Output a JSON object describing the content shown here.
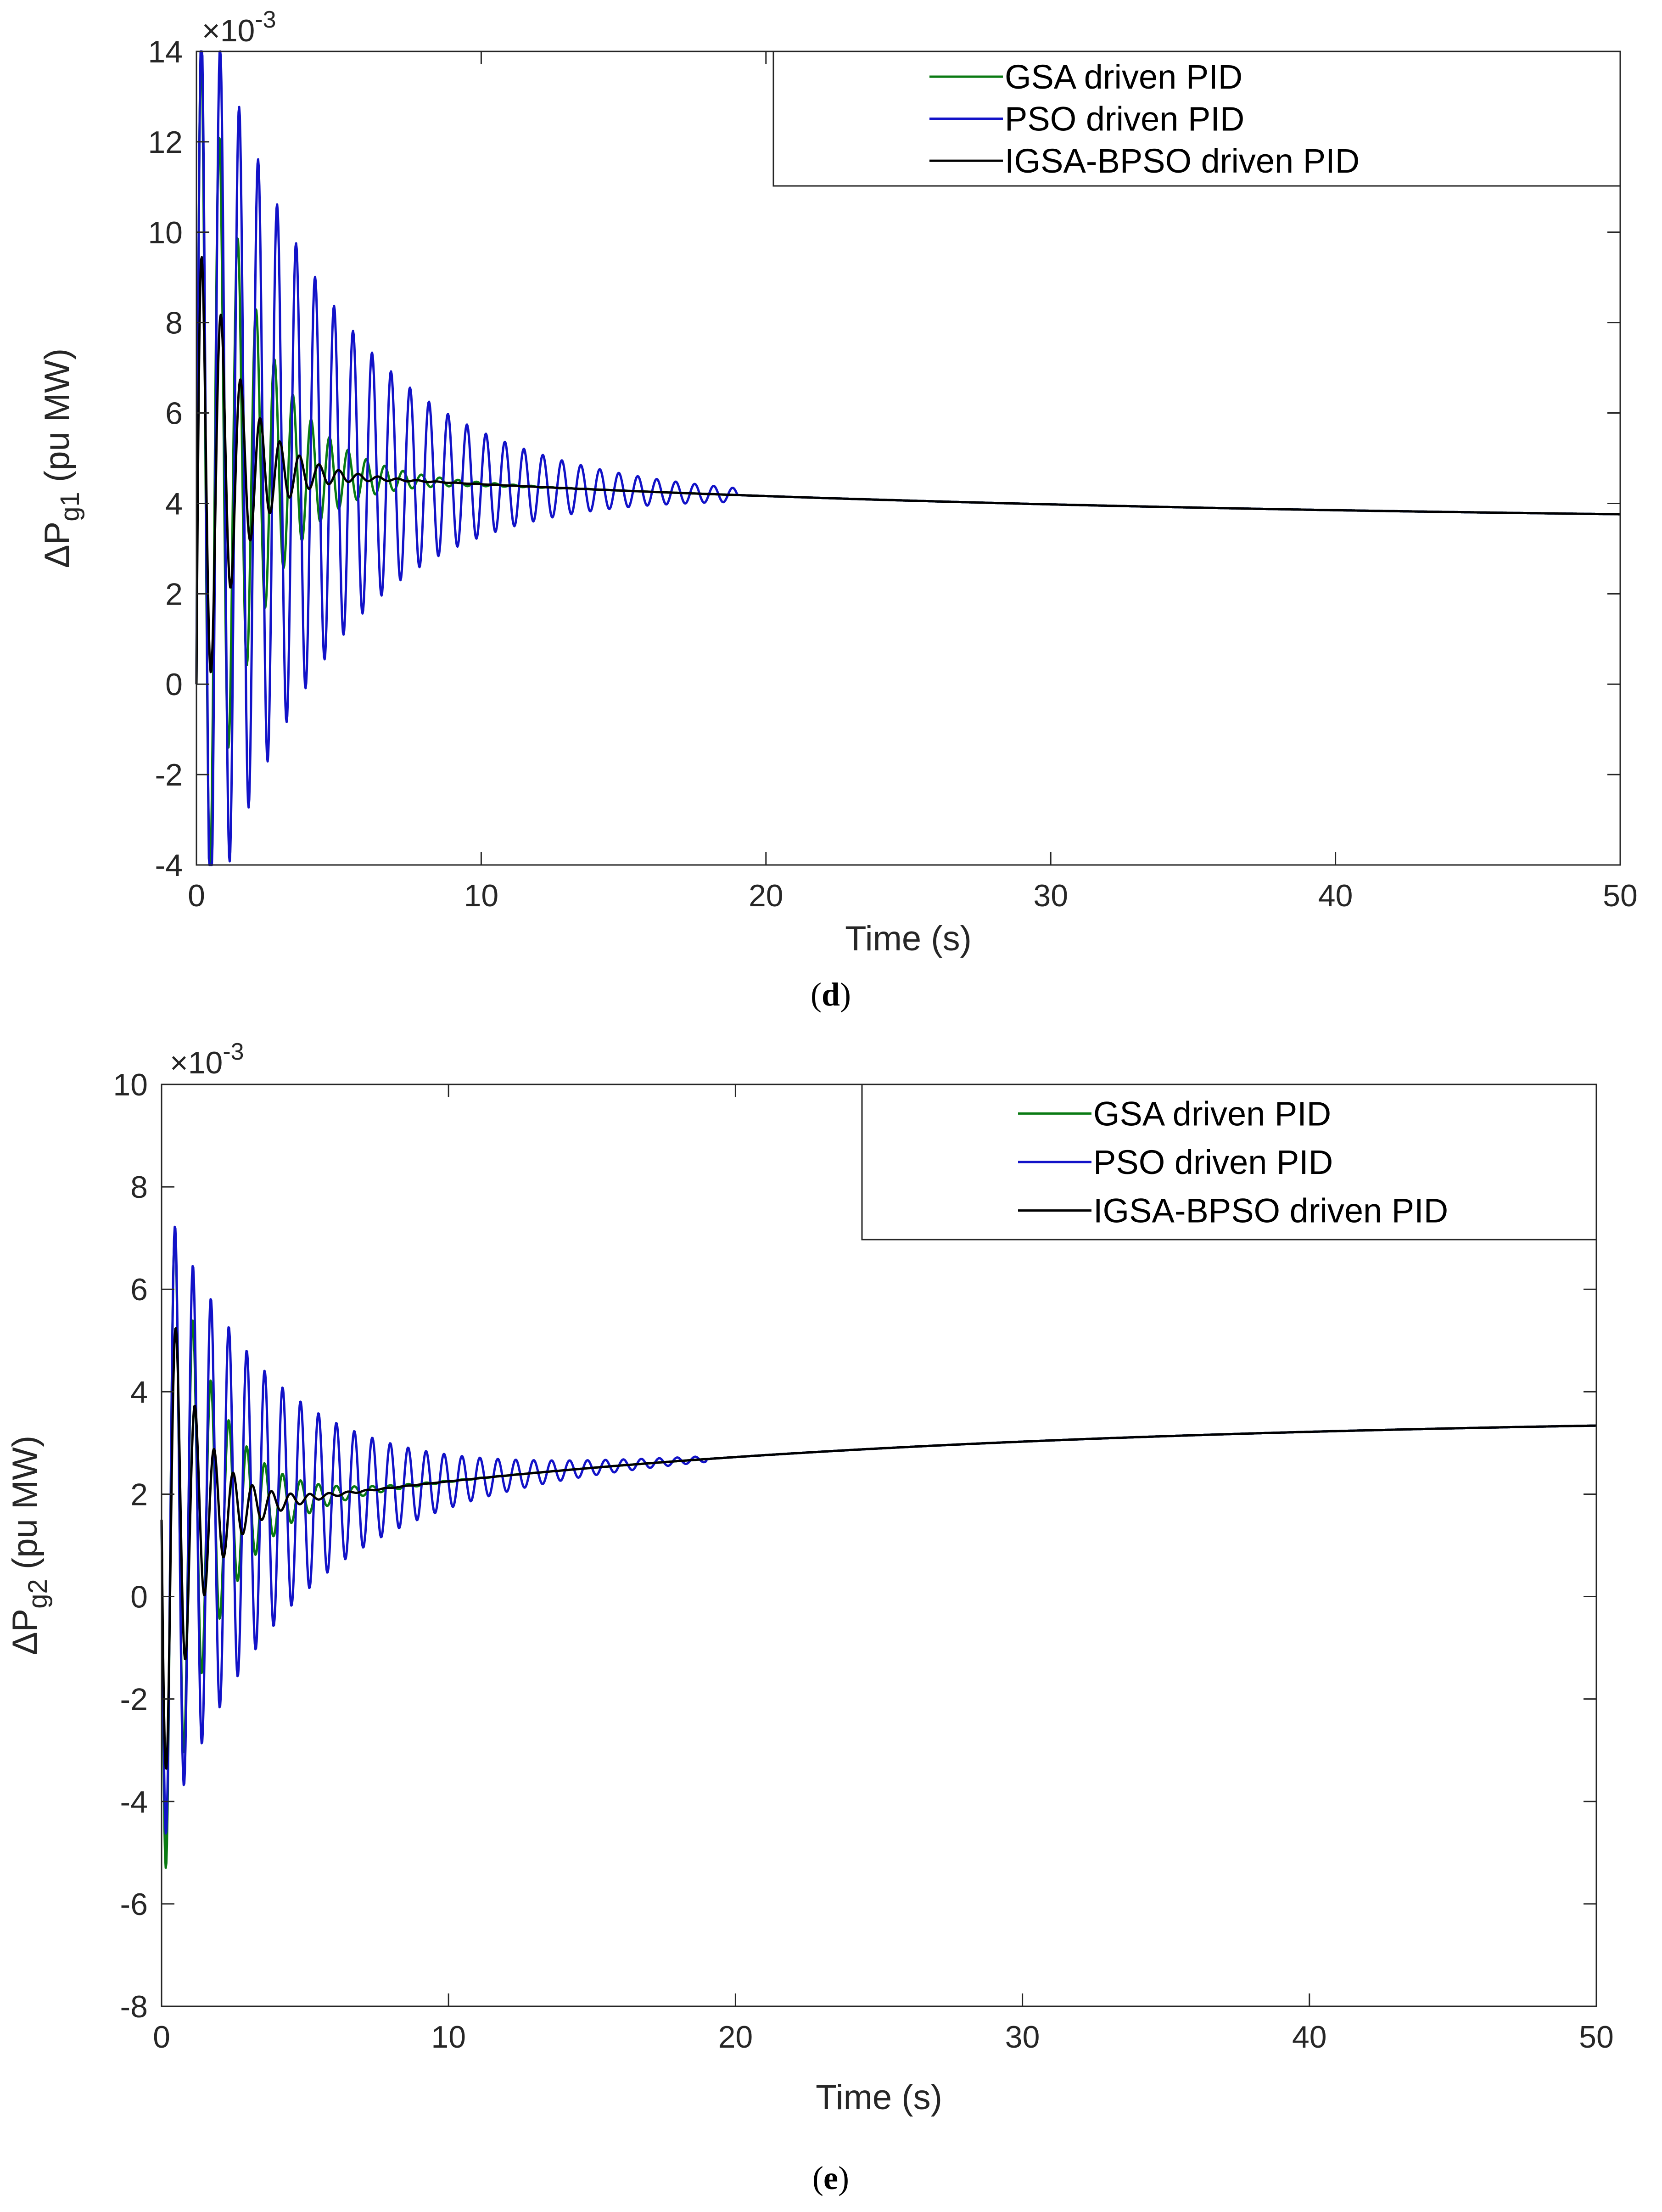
{
  "chart_data": [
    {
      "id": "d",
      "type": "line",
      "caption_letter": "d",
      "caption_open": "(",
      "caption_close": ")",
      "xlabel": "Time (s)",
      "ylabel_main": "ΔP",
      "ylabel_sub": "g1",
      "ylabel_unit": " (pu MW)",
      "exponent_label": "×10",
      "exponent_power": "-3",
      "xlim": [
        0,
        50
      ],
      "ylim": [
        -4,
        14
      ],
      "xticks": [
        0,
        10,
        20,
        30,
        40,
        50
      ],
      "yticks": [
        -4,
        -2,
        0,
        2,
        4,
        6,
        8,
        10,
        12,
        14
      ],
      "legend_position": "top-right",
      "series": [
        {
          "name": "GSA driven PID",
          "color": "#0a7a12",
          "params": {
            "kind": "decay",
            "a": 2.6,
            "b": 0.007,
            "c": 0.02,
            "amp": 11.5,
            "tau": 1.8,
            "freq": 1.55,
            "phase": 0.0,
            "osc_end": 19
          }
        },
        {
          "name": "PSO driven PID",
          "color": "#1212c8",
          "params": {
            "kind": "decay",
            "a": 2.6,
            "b": 0.007,
            "c": 0.02,
            "amp": 11.3,
            "tau": 4.4,
            "freq": 1.5,
            "phase": 0.0,
            "osc_end": 19
          }
        },
        {
          "name": "IGSA-BPSO driven PID",
          "color": "#000000",
          "params": {
            "kind": "decay",
            "a": 2.6,
            "b": 0.007,
            "c": 0.02,
            "amp": 6.6,
            "tau": 1.3,
            "freq": 1.45,
            "phase": 0.0,
            "osc_end": 19
          }
        }
      ]
    },
    {
      "id": "e",
      "type": "line",
      "caption_letter": "e",
      "caption_open": "(",
      "caption_close": ")",
      "xlabel": "Time (s)",
      "ylabel_main": "ΔP",
      "ylabel_sub": "g2",
      "ylabel_unit": " (pu MW)",
      "exponent_label": "×10",
      "exponent_power": "-3",
      "xlim": [
        0,
        50
      ],
      "ylim": [
        -8,
        10
      ],
      "xticks": [
        0,
        10,
        20,
        30,
        40,
        50
      ],
      "yticks": [
        -8,
        -6,
        -4,
        -2,
        0,
        2,
        4,
        6,
        8,
        10
      ],
      "legend_position": "top-right",
      "series": [
        {
          "name": "GSA driven PID",
          "color": "#0a7a12",
          "params": {
            "kind": "rise",
            "a": 3.55,
            "b": 1.75,
            "rate": 0.05,
            "amp": 7.5,
            "tau": 1.6,
            "freq": 1.6,
            "phase": 0.0,
            "osc_end": 19
          }
        },
        {
          "name": "PSO driven PID",
          "color": "#1212c8",
          "params": {
            "kind": "rise",
            "a": 3.55,
            "b": 1.75,
            "rate": 0.05,
            "amp": 6.4,
            "tau": 4.0,
            "freq": 1.6,
            "phase": 0.0,
            "osc_end": 19
          }
        },
        {
          "name": "IGSA-BPSO driven PID",
          "color": "#000000",
          "params": {
            "kind": "rise",
            "a": 3.55,
            "b": 1.75,
            "rate": 0.05,
            "amp": 5.6,
            "tau": 1.2,
            "freq": 1.5,
            "phase": 0.0,
            "osc_end": 19
          }
        }
      ]
    }
  ]
}
